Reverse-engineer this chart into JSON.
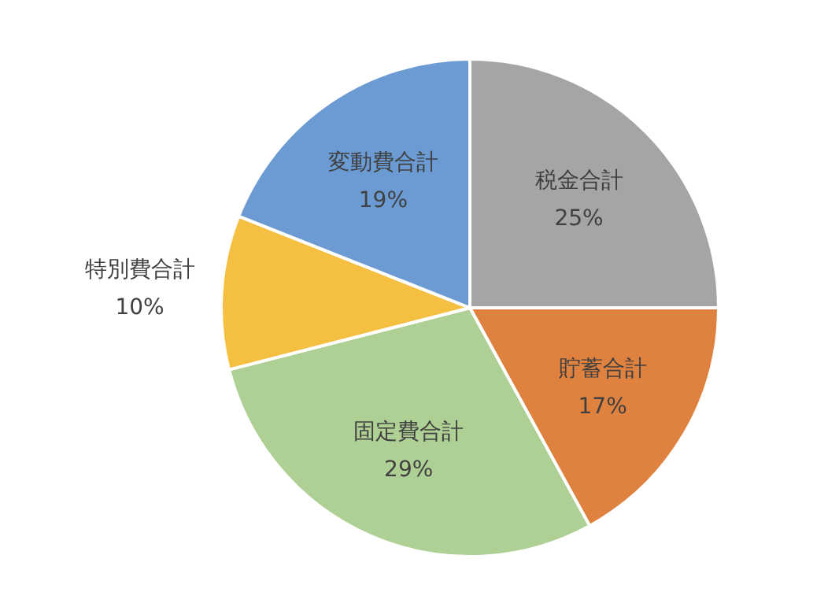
{
  "chart_data": {
    "type": "pie",
    "categories": [
      "税金合計",
      "貯蓄合計",
      "固定費合計",
      "特別費合計",
      "変動費合計"
    ],
    "values": [
      25,
      17,
      29,
      10,
      19
    ],
    "colors": [
      "#a5a5a5",
      "#e0823f",
      "#afd095",
      "#f5c042",
      "#6b9bd2"
    ],
    "value_labels": [
      "25%",
      "17%",
      "29%",
      "10%",
      "19%"
    ]
  }
}
